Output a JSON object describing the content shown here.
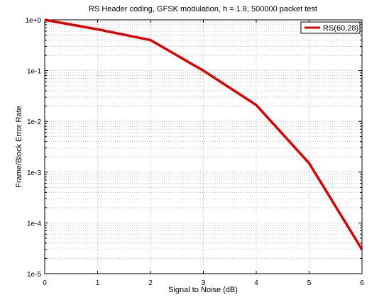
{
  "chart_data": {
    "type": "line",
    "title": "RS Header coding, GFSK modulation, h = 1.8, 500000 packet test",
    "xlabel": "Signal to Noise (dB)",
    "ylabel": "Frame/Block Error Rate",
    "xlim": [
      0,
      6
    ],
    "ylim": [
      1e-05,
      1
    ],
    "yscale": "log",
    "grid": true,
    "legend_position": "top-right",
    "x_ticks": [
      "0",
      "1",
      "2",
      "3",
      "4",
      "5",
      "6"
    ],
    "y_ticks": [
      "1e-5",
      "1e-4",
      "1e-3",
      "1e-2",
      "1e-1",
      "1e+0"
    ],
    "series": [
      {
        "name": "RS(60,28)",
        "color": "#dd0000",
        "x": [
          0,
          1,
          2,
          3,
          4,
          5,
          6
        ],
        "y": [
          1.0,
          0.65,
          0.4,
          0.1,
          0.021,
          0.0015,
          3e-05
        ]
      }
    ]
  }
}
